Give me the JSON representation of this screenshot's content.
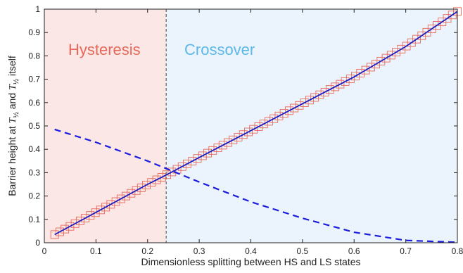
{
  "chart_data": {
    "type": "line",
    "title": "",
    "xlabel": "Dimensionless splitting between HS and LS states",
    "ylabel": {
      "prefix": "Barrier height at ",
      "symbol": "T",
      "subscript": "½",
      "middle": " and ",
      "suffix": " itself"
    },
    "xlim": [
      0,
      0.8
    ],
    "ylim": [
      0,
      1
    ],
    "xticks": [
      "0",
      "0.1",
      "0.2",
      "0.3",
      "0.4",
      "0.5",
      "0.6",
      "0.7",
      "0.8"
    ],
    "yticks": [
      "0",
      "0.1",
      "0.2",
      "0.3",
      "0.4",
      "0.5",
      "0.6",
      "0.7",
      "0.8",
      "0.9",
      "1"
    ],
    "grid": false,
    "regions": [
      {
        "label": "Hysteresis",
        "x_range": [
          0,
          0.236
        ],
        "fill": "#fbe7e6",
        "text_color": "#e8685a"
      },
      {
        "label": "Crossover",
        "x_range": [
          0.236,
          0.8
        ],
        "fill": "#ebf4fc",
        "text_color": "#5bb8e8"
      }
    ],
    "threshold_x": 0.236,
    "series": [
      {
        "style": "solid",
        "color": "#1c1cbf",
        "x": [
          0.02,
          0.1,
          0.2,
          0.236,
          0.3,
          0.4,
          0.5,
          0.6,
          0.7,
          0.8
        ],
        "y": [
          0.035,
          0.13,
          0.25,
          0.29,
          0.365,
          0.48,
          0.595,
          0.71,
          0.84,
          0.99
        ]
      },
      {
        "style": "dashed",
        "color": "#1c1cdd",
        "x": [
          0.02,
          0.1,
          0.2,
          0.3,
          0.4,
          0.5,
          0.6,
          0.7,
          0.8
        ],
        "y": [
          0.485,
          0.43,
          0.35,
          0.26,
          0.175,
          0.105,
          0.045,
          0.01,
          0.002
        ]
      },
      {
        "style": "markers",
        "marker": "square",
        "color": "#e8685a",
        "x_start": 0.02,
        "x_end": 0.8,
        "count": 80
      }
    ]
  }
}
